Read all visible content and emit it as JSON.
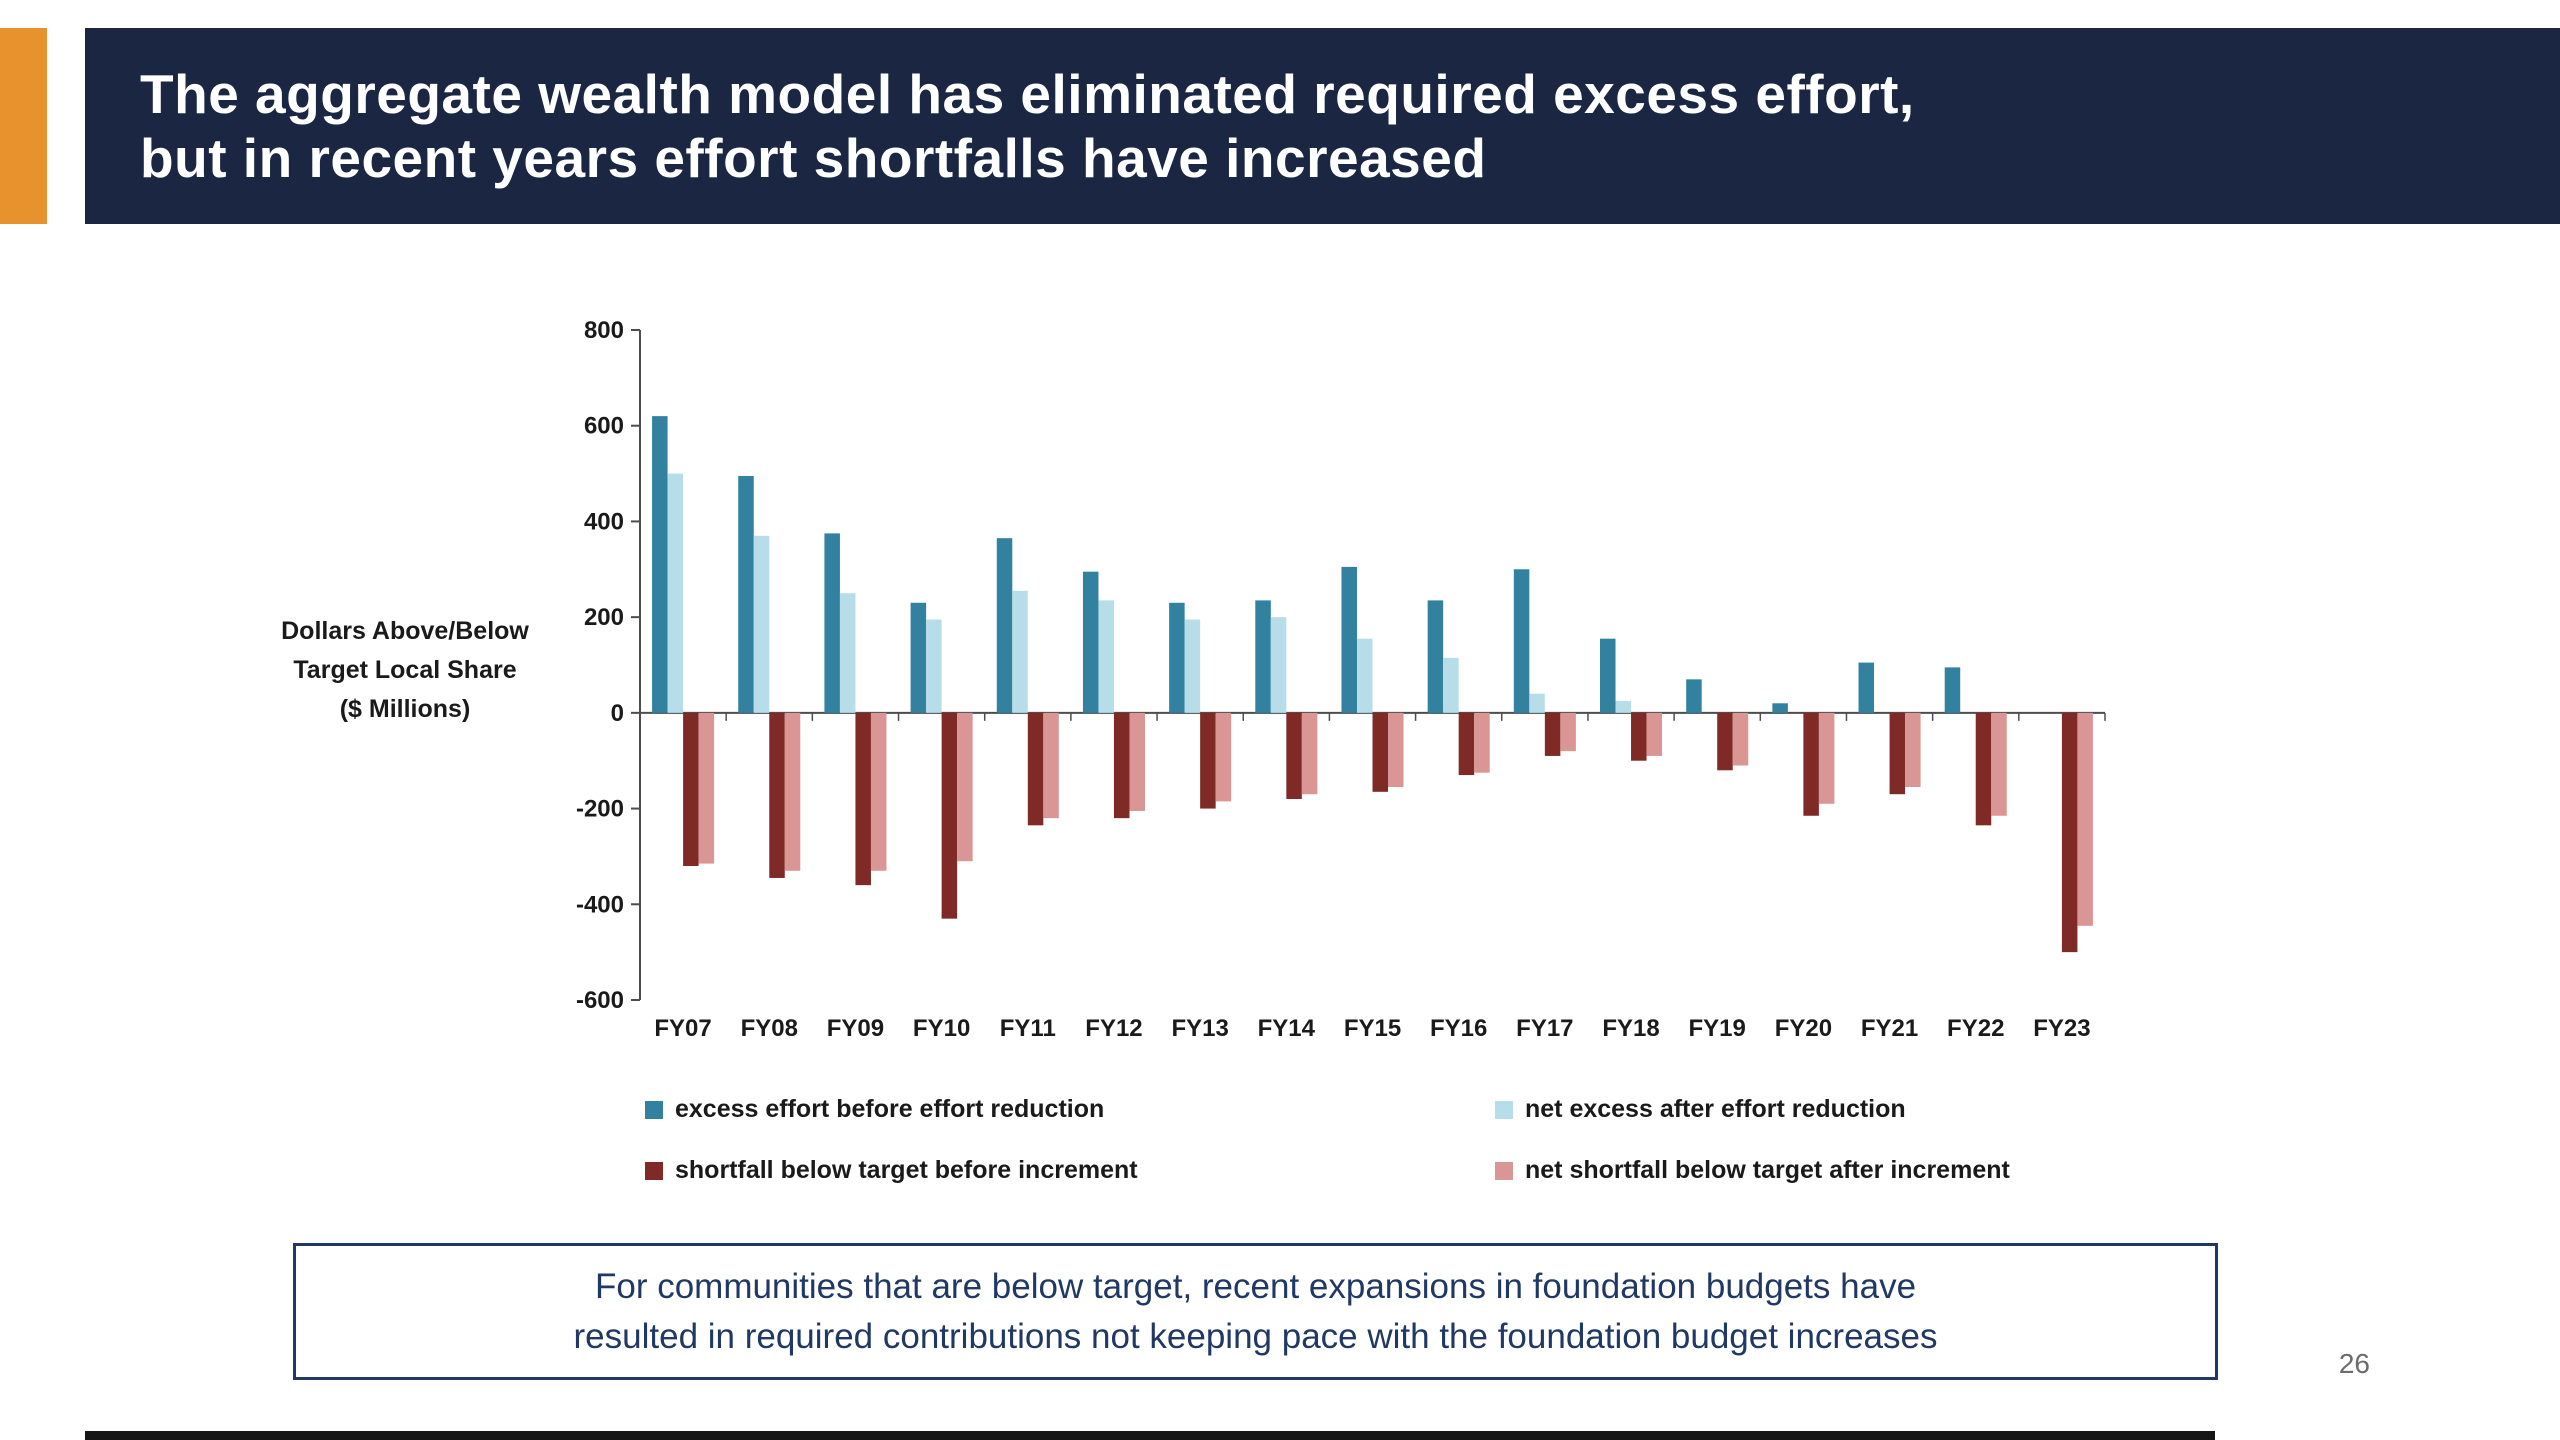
{
  "slide": {
    "title_lines": [
      "The aggregate wealth model has eliminated required excess effort,",
      "but in recent years effort shortfalls have increased"
    ],
    "page_number": "26"
  },
  "note": {
    "lines": [
      "For communities that are below target, recent expansions in foundation budgets have",
      "resulted in required contributions not keeping pace with the foundation budget increases"
    ]
  },
  "chart_data": {
    "type": "bar",
    "title": "",
    "ylabel": "Dollars Above/Below Target Local Share ($ Millions)",
    "ylabel_lines": [
      "Dollars Above/Below",
      "Target Local Share",
      "($ Millions)"
    ],
    "ylim": [
      -600,
      800
    ],
    "yticks": [
      800,
      600,
      400,
      200,
      0,
      -200,
      -400,
      -600
    ],
    "grid": false,
    "legend_position": "bottom",
    "categories": [
      "FY07",
      "FY08",
      "FY09",
      "FY10",
      "FY11",
      "FY12",
      "FY13",
      "FY14",
      "FY15",
      "FY16",
      "FY17",
      "FY18",
      "FY19",
      "FY20",
      "FY21",
      "FY22",
      "FY23"
    ],
    "series": [
      {
        "name": "excess effort before effort reduction",
        "color": "#31819f",
        "values": [
          620,
          495,
          375,
          230,
          365,
          295,
          230,
          235,
          305,
          235,
          300,
          155,
          70,
          20,
          105,
          95,
          0
        ]
      },
      {
        "name": "net excess after effort reduction",
        "color": "#b7dde8",
        "values": [
          500,
          370,
          250,
          195,
          255,
          235,
          195,
          200,
          155,
          115,
          40,
          25,
          0,
          0,
          0,
          0,
          0
        ]
      },
      {
        "name": "shortfall below target before increment",
        "color": "#7f2a27",
        "values": [
          -320,
          -345,
          -360,
          -430,
          -235,
          -220,
          -200,
          -180,
          -165,
          -130,
          -90,
          -100,
          -120,
          -215,
          -170,
          -235,
          -500
        ]
      },
      {
        "name": "net shortfall below target after increment",
        "color": "#d99694",
        "values": [
          -315,
          -330,
          -330,
          -310,
          -220,
          -205,
          -185,
          -170,
          -155,
          -125,
          -80,
          -90,
          -110,
          -190,
          -155,
          -215,
          -445
        ]
      }
    ]
  }
}
